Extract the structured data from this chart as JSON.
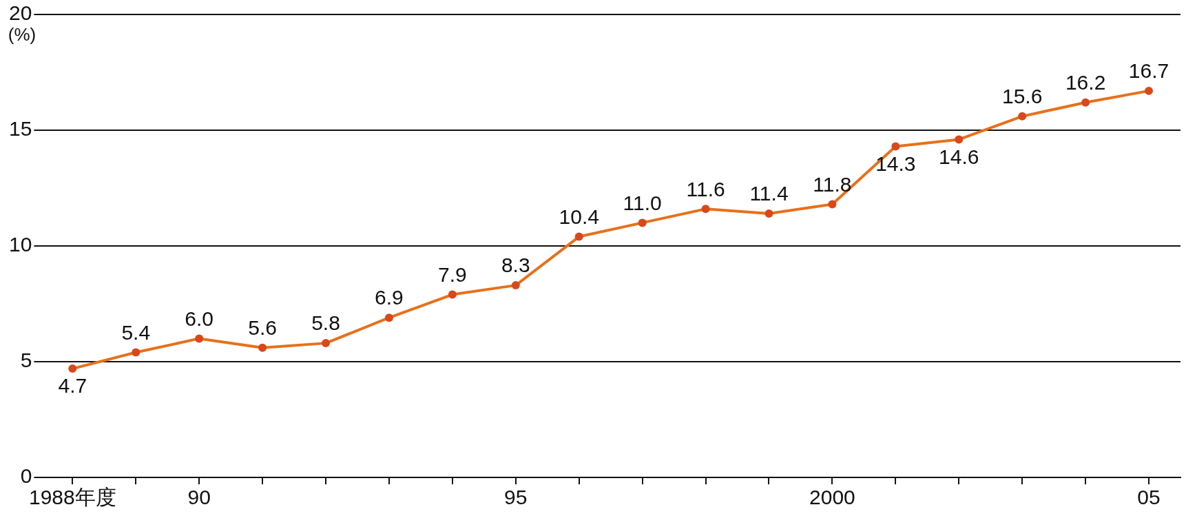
{
  "chart_data": {
    "type": "line",
    "ylabel": "(%)",
    "categories": [
      "1988年度",
      null,
      "90",
      null,
      null,
      null,
      null,
      "95",
      null,
      null,
      null,
      null,
      "2000",
      null,
      null,
      null,
      null,
      "05"
    ],
    "series": [
      {
        "color": "#e8701a",
        "values": [
          4.7,
          5.4,
          6.0,
          5.6,
          5.8,
          6.9,
          7.9,
          8.3,
          10.4,
          11.0,
          11.6,
          11.4,
          11.8,
          14.3,
          14.6,
          15.6,
          16.2,
          16.7
        ],
        "value_labels": [
          "4.7",
          "5.4",
          "6.0",
          "5.6",
          "5.8",
          "6.9",
          "7.9",
          "8.3",
          "10.4",
          "11.0",
          "11.6",
          "11.4",
          "11.8",
          "14.3",
          "14.6",
          "15.6",
          "16.2",
          "16.7"
        ]
      }
    ],
    "ylim": [
      0,
      20
    ],
    "yticks": [
      0,
      5,
      10,
      15,
      20
    ],
    "grid": "y",
    "legend": false,
    "marker": "circle"
  }
}
